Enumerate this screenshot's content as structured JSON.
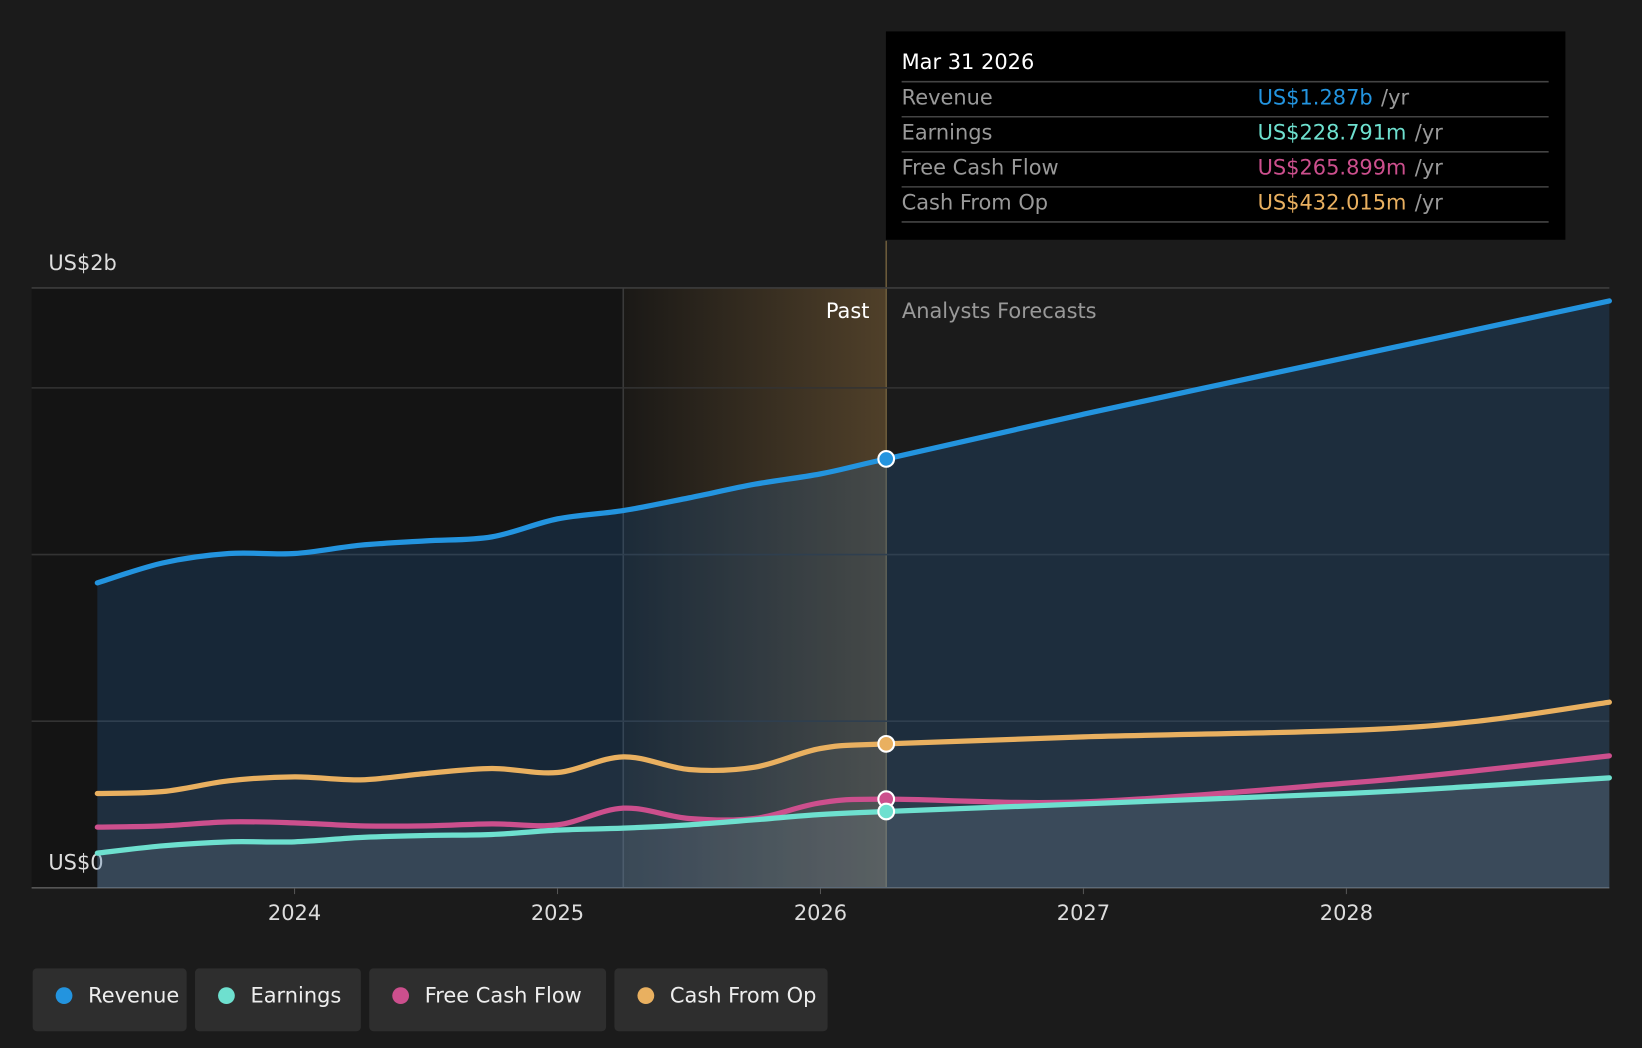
{
  "chart_data": {
    "type": "line",
    "x": [
      2023.25,
      2023.5,
      2023.75,
      2024,
      2024.25,
      2024.5,
      2024.75,
      2025,
      2025.25,
      2025.5,
      2025.75,
      2026,
      2026.25,
      2027,
      2028,
      2028.5,
      2029
    ],
    "xlim": [
      2023,
      2029
    ],
    "xticks": [
      2024,
      2025,
      2026,
      2027,
      2028
    ],
    "ylim": [
      0,
      1.8
    ],
    "yticks": [
      {
        "value": 0,
        "label": "US$0"
      },
      {
        "value": 1.8,
        "label": "US$2b"
      }
    ],
    "ygrid": [
      0.5,
      1,
      1.5
    ],
    "past_label": "Past",
    "forecast_label": "Analysts Forecasts",
    "split_x": 2026.25,
    "highlight_start": 2025.25,
    "series": [
      {
        "name": "Revenue",
        "color": "#2394df",
        "values": [
          0.915,
          0.975,
          1.003,
          1.003,
          1.028,
          1.041,
          1.053,
          1.107,
          1.132,
          1.17,
          1.211,
          1.242,
          1.287,
          1.421,
          1.591,
          1.676,
          1.761
        ]
      },
      {
        "name": "Earnings",
        "color": "#6ee0cf",
        "values": [
          0.104,
          0.126,
          0.138,
          0.138,
          0.151,
          0.157,
          0.16,
          0.173,
          0.179,
          0.189,
          0.204,
          0.22,
          0.229,
          0.252,
          0.283,
          0.305,
          0.33
        ]
      },
      {
        "name": "Free Cash Flow",
        "color": "#cc4f8d",
        "values": [
          0.182,
          0.186,
          0.198,
          0.195,
          0.186,
          0.186,
          0.192,
          0.189,
          0.239,
          0.208,
          0.208,
          0.255,
          0.266,
          0.258,
          0.314,
          0.352,
          0.396
        ]
      },
      {
        "name": "Cash From Op",
        "color": "#e9b060",
        "values": [
          0.283,
          0.289,
          0.321,
          0.333,
          0.324,
          0.343,
          0.358,
          0.346,
          0.393,
          0.355,
          0.362,
          0.418,
          0.432,
          0.453,
          0.472,
          0.5,
          0.557
        ]
      }
    ],
    "tooltip": {
      "date": "Mar 31 2026",
      "point_index": 12,
      "rows": [
        {
          "label": "Revenue",
          "value": "US$1.287b",
          "unit": "/yr"
        },
        {
          "label": "Earnings",
          "value": "US$228.791m",
          "unit": "/yr"
        },
        {
          "label": "Free Cash Flow",
          "value": "US$265.899m",
          "unit": "/yr"
        },
        {
          "label": "Cash From Op",
          "value": "US$432.015m",
          "unit": "/yr"
        }
      ]
    }
  }
}
